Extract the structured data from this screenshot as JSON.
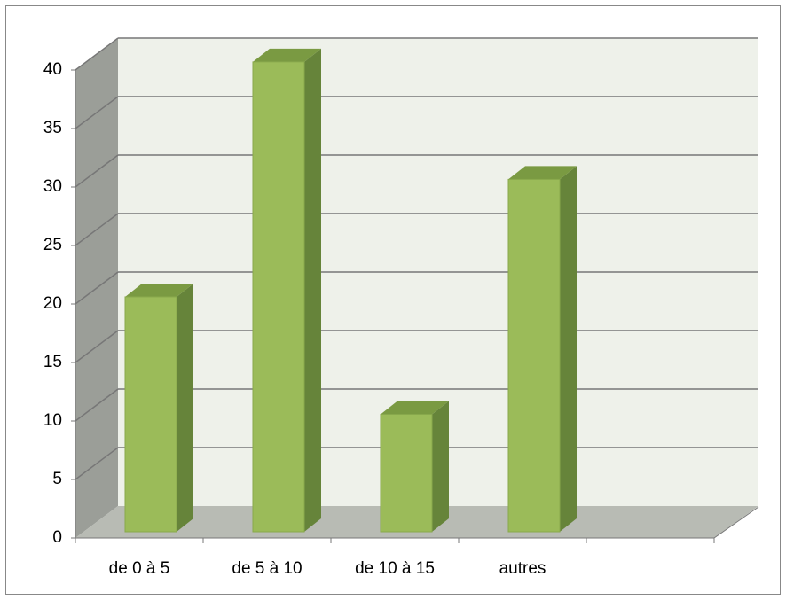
{
  "chart_data": {
    "type": "bar3d",
    "categories": [
      "de 0 à 5",
      "de 5 à 10",
      "de 10 à 15",
      "autres",
      null
    ],
    "values": [
      20,
      40,
      10,
      30,
      null
    ],
    "colors": {
      "front": "#9bbb59",
      "side": "#66843a",
      "top": "#7a9a42"
    },
    "ylim": [
      0,
      40
    ],
    "yticks": [
      0,
      5,
      10,
      15,
      20,
      25,
      30,
      35,
      40
    ],
    "grid": true
  }
}
